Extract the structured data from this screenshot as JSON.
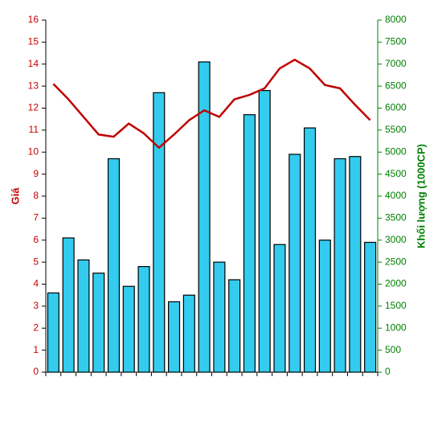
{
  "chart_data": {
    "type": "bar",
    "y_title": "Giá",
    "y2_title": "Khối lượng (1000CP)",
    "categories": [
      null,
      null,
      null,
      null,
      null,
      null,
      null,
      null,
      null,
      null,
      null,
      null,
      null,
      null,
      null,
      null,
      null,
      null,
      null,
      null,
      null,
      null
    ],
    "series": [
      {
        "type": "bar",
        "axis": "y2",
        "color": "#33ccee",
        "values": [
          1800,
          3050,
          2550,
          2250,
          4850,
          1950,
          2400,
          6350,
          1600,
          1750,
          7050,
          2500,
          2100,
          5850,
          6400,
          2900,
          4950,
          5550,
          3000,
          4850,
          4900,
          2950
        ]
      },
      {
        "type": "line",
        "axis": "y",
        "color": "#c00000",
        "values": [
          13.1,
          12.4,
          11.6,
          10.8,
          10.7,
          11.3,
          10.85,
          10.2,
          10.8,
          11.45,
          11.9,
          11.6,
          12.4,
          12.6,
          12.9,
          13.8,
          14.2,
          13.8,
          13.05,
          12.9,
          12.15,
          11.45
        ]
      }
    ],
    "ylim": [
      0,
      16
    ],
    "yticks": [
      0,
      1,
      2,
      3,
      4,
      5,
      6,
      7,
      8,
      9,
      10,
      11,
      12,
      13,
      14,
      15,
      16
    ],
    "y2lim": [
      0,
      8000
    ],
    "y2ticks": [
      0,
      500,
      1000,
      1500,
      2000,
      2500,
      3000,
      3500,
      4000,
      4500,
      5000,
      5500,
      6000,
      6500,
      7000,
      7500,
      8000
    ],
    "y_color": "#cc0000",
    "y2_color": "#008000",
    "grid": false
  }
}
